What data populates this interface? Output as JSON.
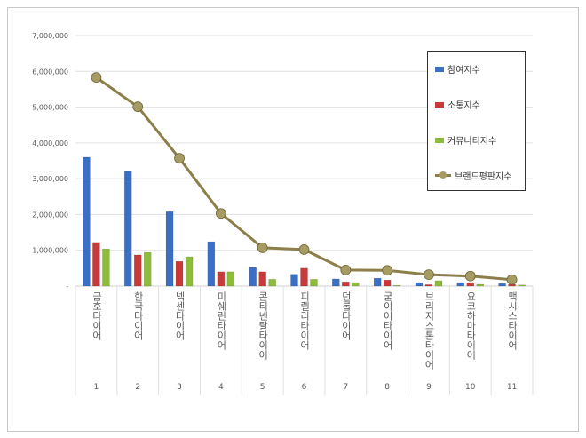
{
  "chart_data": {
    "type": "bar",
    "title": "",
    "categories": [
      "1",
      "2",
      "3",
      "4",
      "5",
      "6",
      "7",
      "8",
      "9",
      "10",
      "11"
    ],
    "category_names": [
      "금호타이어",
      "한국타이어",
      "넥센타이어",
      "미쉐린타이어",
      "콘티넨탈타이어",
      "피렐리타이어",
      "던롭타이어",
      "굳이어타이어",
      "브리지스톤타이어",
      "요코하마타이어",
      "맥시스타이어"
    ],
    "ylim": [
      0,
      7000000
    ],
    "yticks": [
      "-",
      "1,000,000",
      "2,000,000",
      "3,000,000",
      "4,000,000",
      "5,000,000",
      "6,000,000",
      "7,000,000"
    ],
    "grid": true,
    "legend_position": "right",
    "series": [
      {
        "name": "참여지수",
        "type": "bar",
        "color": "#3a6fc4",
        "values": [
          3600000,
          3220000,
          2080000,
          1240000,
          520000,
          330000,
          200000,
          220000,
          100000,
          100000,
          70000
        ]
      },
      {
        "name": "소통지수",
        "type": "bar",
        "color": "#c83a3a",
        "values": [
          1220000,
          870000,
          690000,
          400000,
          400000,
          500000,
          120000,
          170000,
          40000,
          100000,
          50000
        ]
      },
      {
        "name": "커뮤니티지수",
        "type": "bar",
        "color": "#8dbb3a",
        "values": [
          1040000,
          940000,
          820000,
          400000,
          190000,
          190000,
          100000,
          20000,
          150000,
          50000,
          30000
        ]
      },
      {
        "name": "브랜드평판지수",
        "type": "line",
        "color": "#8c7f4a",
        "values": [
          5830000,
          5010000,
          3570000,
          2030000,
          1070000,
          1020000,
          450000,
          440000,
          320000,
          280000,
          180000
        ]
      }
    ]
  }
}
